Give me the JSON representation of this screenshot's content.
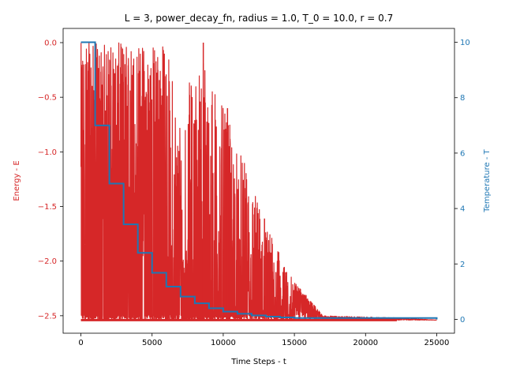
{
  "chart_data": {
    "type": "line",
    "title": "L = 3, power_decay_fn, radius = 1.0, T_0 = 10.0, r = 0.7",
    "xlabel": "Time Steps - t",
    "ylabel_left": "Energy - E",
    "ylabel_right": "Temperature - T",
    "xlim": [
      -1250,
      26250
    ],
    "ylim_left": [
      -2.66,
      0.13
    ],
    "ylim_right": [
      -0.5,
      10.5
    ],
    "x_ticks": [
      0,
      5000,
      10000,
      15000,
      20000,
      25000
    ],
    "y_ticks_left": [
      0.0,
      -0.5,
      -1.0,
      -1.5,
      -2.0,
      -2.5
    ],
    "y_ticks_right": [
      0,
      2,
      4,
      6,
      8,
      10
    ],
    "grid": false,
    "colors": {
      "energy": "#d62728",
      "temperature": "#1f77b4",
      "axis_left_text": "#d62728",
      "axis_right_text": "#1f77b4"
    },
    "series": [
      {
        "axis": "left",
        "color": "#d62728",
        "min_energy": -2.54,
        "max_energy": 0.0,
        "envelope": [
          {
            "t": 0,
            "max": 0.0
          },
          {
            "t": 6000,
            "max": 0.0
          },
          {
            "t": 7000,
            "max": -0.55
          },
          {
            "t": 8600,
            "max": 0.0
          },
          {
            "t": 10000,
            "max": -0.6
          },
          {
            "t": 11500,
            "max": -1.1
          },
          {
            "t": 12900,
            "max": -1.6
          },
          {
            "t": 14500,
            "max": -2.1
          },
          {
            "t": 17000,
            "max": -2.5
          },
          {
            "t": 22500,
            "max": -2.52
          },
          {
            "t": 25000,
            "max": -2.54
          }
        ],
        "notable_spikes": [
          {
            "t": 8600,
            "e": 0.0
          },
          {
            "t": 9200,
            "e": -0.57
          },
          {
            "t": 10300,
            "e": -0.6
          },
          {
            "t": 10450,
            "e": -0.95
          },
          {
            "t": 12900,
            "e": -1.61
          },
          {
            "t": 13200,
            "e": -2.1
          },
          {
            "t": 13700,
            "e": -2.1
          },
          {
            "t": 14200,
            "e": -2.1
          },
          {
            "t": 14450,
            "e": -2.1
          }
        ]
      },
      {
        "axis": "right",
        "color": "#1f77b4",
        "step_interval": 1000,
        "x": [
          0,
          1000,
          2000,
          3000,
          4000,
          5000,
          6000,
          7000,
          8000,
          9000,
          10000,
          11000,
          12000,
          13000,
          14000,
          15000,
          25000
        ],
        "values": [
          10.0,
          7.0,
          4.9,
          3.43,
          2.4,
          1.68,
          1.18,
          0.82,
          0.58,
          0.4,
          0.28,
          0.2,
          0.14,
          0.1,
          0.07,
          0.05,
          0.0
        ]
      }
    ]
  }
}
